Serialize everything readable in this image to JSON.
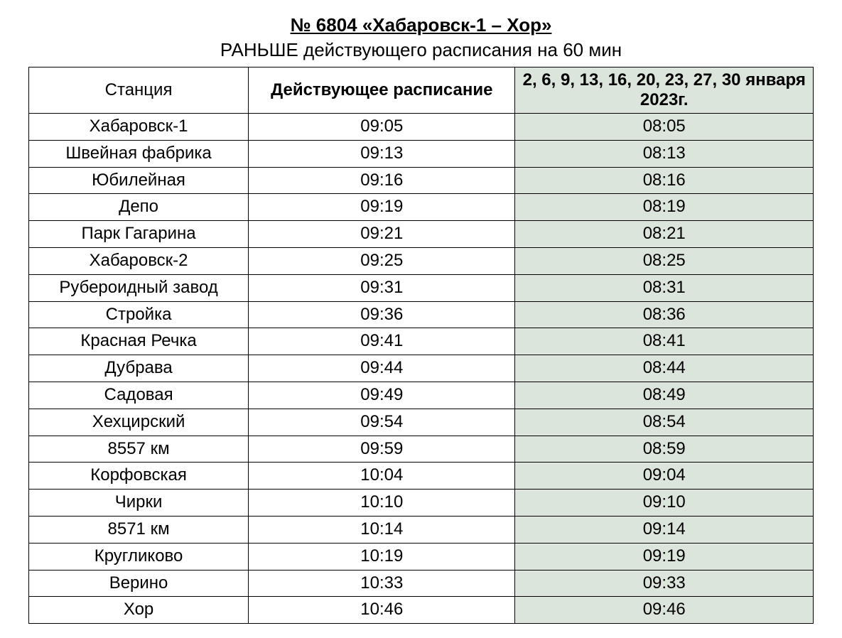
{
  "title": "№ 6804 «Хабаровск-1 – Хор»",
  "subtitle": "РАНЬШЕ действующего расписания на 60 мин",
  "columns": {
    "station": "Станция",
    "current": "Действующее расписание",
    "new": "2, 6, 9, 13, 16, 20, 23, 27, 30 января 2023г."
  },
  "rows": [
    {
      "station": "Хабаровск-1",
      "current": "09:05",
      "new": "08:05"
    },
    {
      "station": "Швейная фабрика",
      "current": "09:13",
      "new": "08:13"
    },
    {
      "station": "Юбилейная",
      "current": "09:16",
      "new": "08:16"
    },
    {
      "station": "Депо",
      "current": "09:19",
      "new": "08:19"
    },
    {
      "station": "Парк Гагарина",
      "current": "09:21",
      "new": "08:21"
    },
    {
      "station": "Хабаровск-2",
      "current": "09:25",
      "new": "08:25"
    },
    {
      "station": "Рубероидный завод",
      "current": "09:31",
      "new": "08:31"
    },
    {
      "station": "Стройка",
      "current": "09:36",
      "new": "08:36"
    },
    {
      "station": "Красная Речка",
      "current": "09:41",
      "new": "08:41"
    },
    {
      "station": "Дубрава",
      "current": "09:44",
      "new": "08:44"
    },
    {
      "station": "Садовая",
      "current": "09:49",
      "new": "08:49"
    },
    {
      "station": "Хехцирский",
      "current": "09:54",
      "new": "08:54"
    },
    {
      "station": "8557 км",
      "current": "09:59",
      "new": "08:59"
    },
    {
      "station": "Корфовская",
      "current": "10:04",
      "new": "09:04"
    },
    {
      "station": "Чирки",
      "current": "10:10",
      "new": "09:10"
    },
    {
      "station": "8571 км",
      "current": "10:14",
      "new": "09:14"
    },
    {
      "station": "Кругликово",
      "current": "10:19",
      "new": "09:19"
    },
    {
      "station": "Верино",
      "current": "10:33",
      "new": "09:33"
    },
    {
      "station": "Хор",
      "current": "10:46",
      "new": "09:46"
    }
  ],
  "styling": {
    "highlight_bg": "#dce5db",
    "border_color": "#000000",
    "text_color": "#000000",
    "title_fontsize": 26,
    "cell_fontsize": 24
  }
}
